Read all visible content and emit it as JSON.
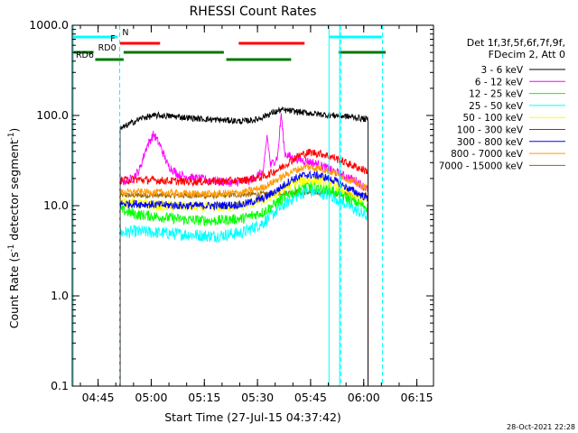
{
  "chart_data": {
    "type": "line",
    "title": "RHESSI Count Rates",
    "xlabel": "Start Time (27-Jul-15 04:37:42)",
    "ylabel": "Count Rate (s",
    "ylabel_sup": "-1",
    "ylabel_tail": " detector segment",
    "ylabel_sup2": "-1",
    "ylabel_end": ")",
    "yscale": "log",
    "ylim": [
      0.1,
      1000
    ],
    "xlim_minutes": [
      0,
      102
    ],
    "x_ticks": [
      {
        "t": 7.3,
        "label": "04:45"
      },
      {
        "t": 22.3,
        "label": "05:00"
      },
      {
        "t": 37.3,
        "label": "05:15"
      },
      {
        "t": 52.3,
        "label": "05:30"
      },
      {
        "t": 67.3,
        "label": "05:45"
      },
      {
        "t": 82.3,
        "label": "06:00"
      },
      {
        "t": 97.3,
        "label": "06:15"
      }
    ],
    "y_ticks": [
      {
        "v": 1000,
        "label": "1000.0"
      },
      {
        "v": 100,
        "label": "100.0"
      },
      {
        "v": 10,
        "label": "10.0"
      },
      {
        "v": 1,
        "label": "1.0"
      },
      {
        "v": 0.1,
        "label": "0.1"
      }
    ],
    "legend_header": [
      "Det 1f,3f,5f,6f,7f,9f,",
      "FDecim 2, Att 0"
    ],
    "legend_placement": "right",
    "timestamp": "28-Oct-2021 22:28",
    "data_start": 13.5,
    "data_end": 83.5,
    "series": [
      {
        "name": "3 - 6 keV",
        "color": "#000000",
        "noise": 0.035,
        "knots": [
          [
            13.5,
            70
          ],
          [
            16,
            80
          ],
          [
            20,
            95
          ],
          [
            24,
            100
          ],
          [
            28,
            98
          ],
          [
            32,
            95
          ],
          [
            36,
            92
          ],
          [
            40,
            90
          ],
          [
            44,
            88
          ],
          [
            48,
            86
          ],
          [
            52,
            90
          ],
          [
            56,
            105
          ],
          [
            59,
            115
          ],
          [
            62,
            112
          ],
          [
            65,
            108
          ],
          [
            68,
            105
          ],
          [
            71,
            102
          ],
          [
            74,
            100
          ],
          [
            77,
            98
          ],
          [
            80,
            95
          ],
          [
            83.5,
            90
          ]
        ]
      },
      {
        "name": "6 - 12 keV",
        "color": "#ff00ff",
        "noise": 0.05,
        "knots": [
          [
            13.5,
            18
          ],
          [
            17,
            20
          ],
          [
            19,
            25
          ],
          [
            21,
            45
          ],
          [
            23,
            62
          ],
          [
            25,
            45
          ],
          [
            27,
            28
          ],
          [
            30,
            22
          ],
          [
            35,
            20
          ],
          [
            40,
            19
          ],
          [
            45,
            18
          ],
          [
            50,
            19
          ],
          [
            54,
            24
          ],
          [
            55,
            60
          ],
          [
            56,
            28
          ],
          [
            58,
            35
          ],
          [
            59,
            105
          ],
          [
            60,
            38
          ],
          [
            62,
            34
          ],
          [
            65,
            32
          ],
          [
            68,
            30
          ],
          [
            72,
            26
          ],
          [
            76,
            22
          ],
          [
            80,
            19
          ],
          [
            83.5,
            15
          ]
        ]
      },
      {
        "name": "12 - 25 keV",
        "color": "#00ff00",
        "noise": 0.06,
        "knots": [
          [
            13.5,
            9
          ],
          [
            18,
            8
          ],
          [
            25,
            7.5
          ],
          [
            32,
            7
          ],
          [
            40,
            6.8
          ],
          [
            48,
            7.2
          ],
          [
            54,
            8.5
          ],
          [
            58,
            11
          ],
          [
            62,
            14
          ],
          [
            66,
            16.5
          ],
          [
            70,
            16
          ],
          [
            74,
            14.5
          ],
          [
            78,
            12
          ],
          [
            83.5,
            9.5
          ]
        ]
      },
      {
        "name": "25 - 50 keV",
        "color": "#00ffff",
        "noise": 0.07,
        "knots": [
          [
            13.5,
            5
          ],
          [
            18,
            5.2
          ],
          [
            25,
            5
          ],
          [
            32,
            4.8
          ],
          [
            40,
            4.6
          ],
          [
            48,
            5
          ],
          [
            54,
            6.5
          ],
          [
            58,
            9
          ],
          [
            62,
            12
          ],
          [
            66,
            14.5
          ],
          [
            70,
            14
          ],
          [
            74,
            12.5
          ],
          [
            78,
            10
          ],
          [
            83.5,
            7.5
          ]
        ]
      },
      {
        "name": "50 - 100 keV",
        "color": "#ffff00",
        "noise": 0.06,
        "knots": [
          [
            13.5,
            11
          ],
          [
            18,
            10.5
          ],
          [
            25,
            10
          ],
          [
            32,
            9.8
          ],
          [
            40,
            9.6
          ],
          [
            48,
            10
          ],
          [
            54,
            11.5
          ],
          [
            58,
            14
          ],
          [
            62,
            17.5
          ],
          [
            66,
            19.5
          ],
          [
            70,
            19
          ],
          [
            74,
            17
          ],
          [
            78,
            14
          ],
          [
            83.5,
            11
          ]
        ]
      },
      {
        "name": "100 - 300 keV",
        "color": "#ff0000",
        "noise": 0.045,
        "knots": [
          [
            13.5,
            19
          ],
          [
            18,
            19.5
          ],
          [
            25,
            19
          ],
          [
            32,
            18.5
          ],
          [
            40,
            18.5
          ],
          [
            48,
            19
          ],
          [
            54,
            21
          ],
          [
            58,
            25
          ],
          [
            61,
            30
          ],
          [
            64,
            36
          ],
          [
            67,
            39
          ],
          [
            70,
            38
          ],
          [
            74,
            34
          ],
          [
            78,
            29
          ],
          [
            83.5,
            24
          ]
        ]
      },
      {
        "name": "300 - 800 keV",
        "color": "#0000ff",
        "noise": 0.045,
        "knots": [
          [
            13.5,
            10.5
          ],
          [
            18,
            10.5
          ],
          [
            25,
            10.2
          ],
          [
            32,
            10
          ],
          [
            40,
            10
          ],
          [
            48,
            10.3
          ],
          [
            54,
            12
          ],
          [
            58,
            15
          ],
          [
            62,
            19.5
          ],
          [
            66,
            22
          ],
          [
            70,
            21.5
          ],
          [
            74,
            19
          ],
          [
            78,
            15.5
          ],
          [
            83.5,
            12
          ]
        ]
      },
      {
        "name": "800 - 7000 keV",
        "color": "#ff9900",
        "noise": 0.04,
        "knots": [
          [
            13.5,
            14
          ],
          [
            18,
            14.2
          ],
          [
            25,
            14
          ],
          [
            32,
            13.6
          ],
          [
            40,
            13.5
          ],
          [
            48,
            14
          ],
          [
            54,
            16
          ],
          [
            58,
            19.5
          ],
          [
            62,
            24
          ],
          [
            66,
            27
          ],
          [
            70,
            26
          ],
          [
            74,
            23
          ],
          [
            78,
            19.5
          ],
          [
            83.5,
            15.5
          ]
        ]
      },
      {
        "name": "7000 - 15000 keV",
        "color": "#996600",
        "noise": 0.03,
        "knots": [
          [
            13.5,
            13
          ],
          [
            25,
            13
          ],
          [
            40,
            12.8
          ],
          [
            54,
            13.5
          ],
          [
            62,
            14
          ],
          [
            70,
            14
          ],
          [
            83.5,
            13
          ]
        ]
      }
    ],
    "vlines_solid": [
      0.3,
      72.5,
      75.5
    ],
    "vlines_dashed": [
      13.4,
      75.8,
      87.6
    ],
    "bars": [
      {
        "label": "N",
        "label_at": 13.6,
        "color": "#00ffff",
        "y": 1,
        "segments": [
          [
            0.4,
            12.8
          ],
          [
            72.6,
            87.4
          ]
        ]
      },
      {
        "label": "F",
        "label_at": 11.8,
        "color": "#ff0000",
        "y": 2,
        "segments": [
          [
            13.5,
            24.8
          ],
          [
            47,
            65.6
          ]
        ]
      },
      {
        "label": "RD0",
        "label_at": 6.8,
        "color": "#007700",
        "y": 3,
        "segments": [
          [
            0.4,
            6
          ],
          [
            14.5,
            42.8
          ],
          [
            75.2,
            88.5
          ]
        ]
      },
      {
        "label": "RD6",
        "label_at": 0.5,
        "color": "#007700",
        "y": 4,
        "segments": [
          [
            6.5,
            14.5
          ],
          [
            43.5,
            61.8
          ]
        ]
      }
    ]
  }
}
